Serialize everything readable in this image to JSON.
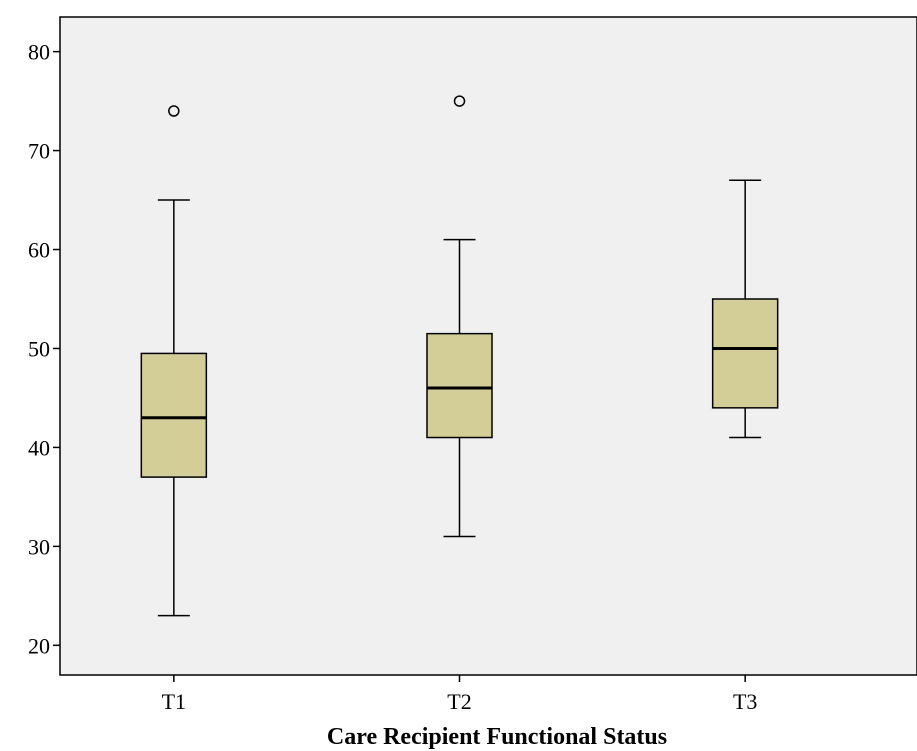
{
  "chart_data": {
    "type": "boxplot",
    "title": "",
    "xlabel": "Care Recipient Functional Status",
    "ylabel": "",
    "ylim": [
      17,
      83.5
    ],
    "yticks": [
      20,
      30,
      40,
      50,
      60,
      70,
      80
    ],
    "grid": false,
    "legend": "none",
    "categories": [
      "T1",
      "T2",
      "T3"
    ],
    "boxes": [
      {
        "category": "T1",
        "whisker_low": 23,
        "q1": 37,
        "median": 43,
        "q3": 49.5,
        "whisker_high": 65,
        "outliers": [
          74
        ]
      },
      {
        "category": "T2",
        "whisker_low": 31,
        "q1": 41,
        "median": 46,
        "q3": 51.5,
        "whisker_high": 61,
        "outliers": [
          75
        ]
      },
      {
        "category": "T3",
        "whisker_low": 41,
        "q1": 44,
        "median": 50,
        "q3": 55,
        "whisker_high": 67,
        "outliers": []
      }
    ],
    "colors": {
      "plot_background": "#f0f0f0",
      "box_fill": "#d3ce97",
      "stroke": "#000000"
    }
  }
}
